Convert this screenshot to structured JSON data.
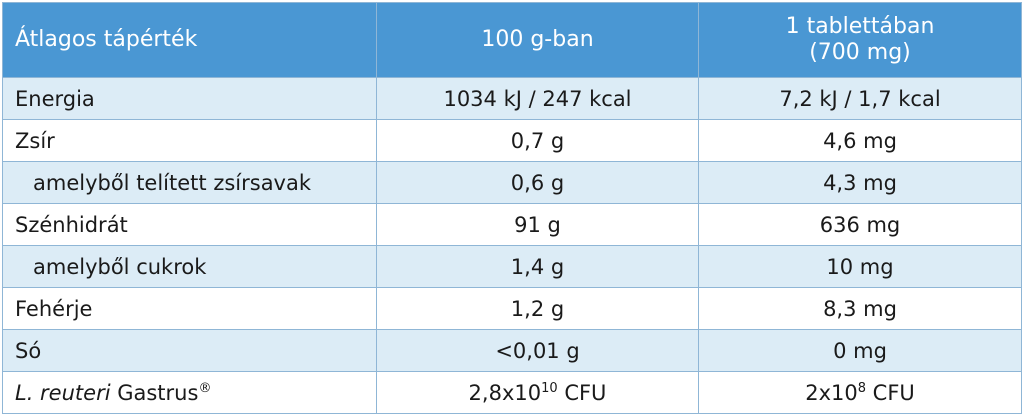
{
  "header": {
    "col1": "Átlagos tápérték",
    "col2": "100 g-ban",
    "col3_line1": "1 tablettában",
    "col3_line2": "(700 mg)"
  },
  "rows": [
    {
      "name": "Energia",
      "per100g": "1034 kJ / 247 kcal",
      "perTablet": "7,2 kJ / 1,7 kcal"
    },
    {
      "name": "Zsír",
      "per100g": "0,7 g",
      "perTablet": "4,6 mg"
    },
    {
      "name": "amelyből telített zsírsavak",
      "per100g": "0,6 g",
      "perTablet": "4,3 mg"
    },
    {
      "name": "Szénhidrát",
      "per100g": "91 g",
      "perTablet": "636 mg"
    },
    {
      "name": "amelyből cukrok",
      "per100g": "1,4 g",
      "perTablet": "10 mg"
    },
    {
      "name": "Fehérje",
      "per100g": "1,2 g",
      "perTablet": "8,3 mg"
    },
    {
      "name": "Só",
      "per100g": "<0,01 g",
      "perTablet": "0 mg"
    }
  ],
  "last_row": {
    "name_italic": "L. reuteri",
    "name_rest": " Gastrus",
    "name_mark": "®",
    "per100g_base": "2,8x10",
    "per100g_exp": "10",
    "per100g_unit": " CFU",
    "perTablet_base": "2x10",
    "perTablet_exp": "8",
    "perTablet_unit": " CFU"
  },
  "colors": {
    "header_bg": "#4a97d3",
    "stripe_bg": "#dcecf6",
    "border": "#8fb6d6"
  }
}
